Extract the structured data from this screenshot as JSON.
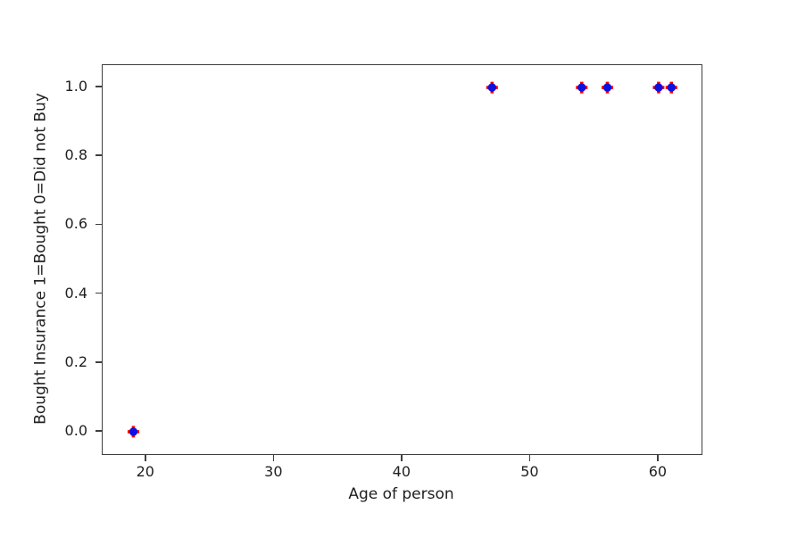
{
  "figure": {
    "background": "#ffffff",
    "text_color": "#1f1f1f",
    "spine_color": "#3f3f3f"
  },
  "chart_data": {
    "type": "scatter",
    "title": "",
    "xlabel": "Age of person",
    "ylabel": "Bought Insurance 1=Bought 0=Did not Buy",
    "xlim": [
      16.6,
      63.35
    ],
    "ylim": [
      -0.065,
      1.065
    ],
    "x_ticks": [
      20,
      30,
      40,
      50,
      60
    ],
    "y_ticks": [
      0.0,
      0.2,
      0.4,
      0.6,
      0.8,
      1.0
    ],
    "y_tick_decimals": 1,
    "grid": false,
    "legend_position": "none",
    "series": [
      {
        "name": "red-plus-markers",
        "marker": "plus",
        "color": "#ff0000",
        "points": [
          [
            19,
            0
          ],
          [
            47,
            1
          ],
          [
            54,
            1
          ],
          [
            56,
            1
          ],
          [
            60,
            1
          ],
          [
            61,
            1
          ]
        ]
      },
      {
        "name": "blue-dot-markers",
        "marker": "dot",
        "color": "#0f0fe0",
        "points": [
          [
            19,
            0
          ],
          [
            47,
            1
          ],
          [
            54,
            1
          ],
          [
            56,
            1
          ],
          [
            60,
            1
          ],
          [
            61,
            1
          ]
        ]
      }
    ]
  }
}
